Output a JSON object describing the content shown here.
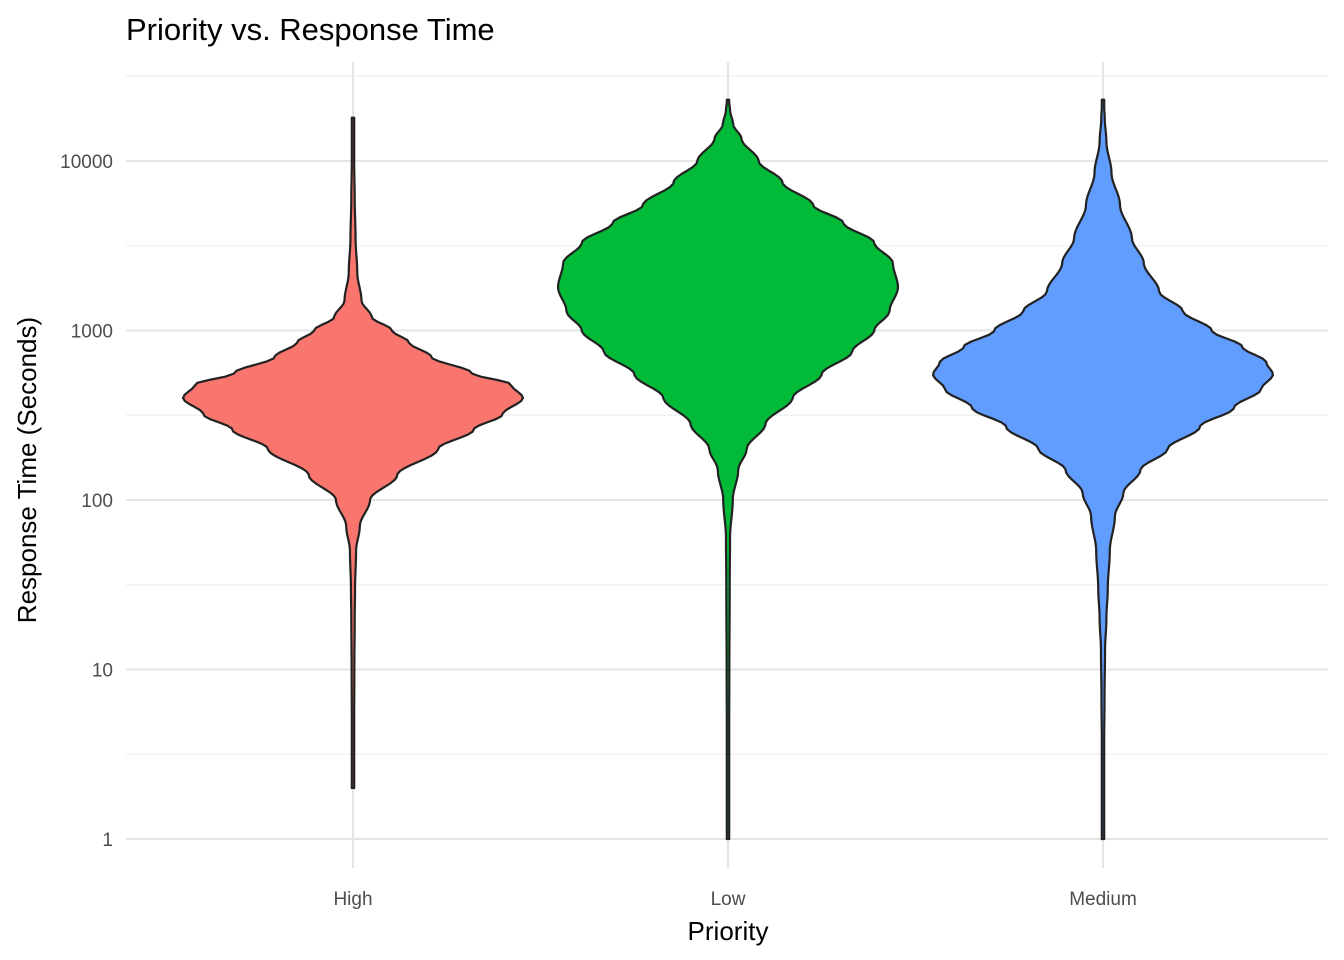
{
  "chart_data": {
    "type": "violin",
    "title": "Priority vs. Response Time",
    "xlabel": "Priority",
    "ylabel": "Response Time (Seconds)",
    "y_scale": "log10",
    "ylim": [
      1,
      30000
    ],
    "y_ticks": [
      1,
      10,
      100,
      1000,
      10000
    ],
    "y_tick_labels": [
      "1",
      "10",
      "100",
      "1000",
      "10000"
    ],
    "grid": true,
    "legend": "none",
    "categories": [
      "High",
      "Low",
      "Medium"
    ],
    "series": [
      {
        "category": "High",
        "color": "#F8766D",
        "min": 2,
        "max": 18000,
        "mode": 400,
        "density_profile": [
          [
            2,
            0.005
          ],
          [
            5,
            0.007
          ],
          [
            10,
            0.008
          ],
          [
            20,
            0.01
          ],
          [
            30,
            0.012
          ],
          [
            50,
            0.018
          ],
          [
            70,
            0.04
          ],
          [
            100,
            0.1
          ],
          [
            140,
            0.26
          ],
          [
            200,
            0.5
          ],
          [
            260,
            0.71
          ],
          [
            320,
            0.88
          ],
          [
            400,
            1.0
          ],
          [
            480,
            0.93
          ],
          [
            560,
            0.7
          ],
          [
            700,
            0.46
          ],
          [
            850,
            0.33
          ],
          [
            1000,
            0.23
          ],
          [
            1200,
            0.11
          ],
          [
            1500,
            0.05
          ],
          [
            2200,
            0.025
          ],
          [
            3500,
            0.015
          ],
          [
            6000,
            0.01
          ],
          [
            10000,
            0.007
          ],
          [
            18000,
            0.005
          ]
        ]
      },
      {
        "category": "Low",
        "color": "#00BA38",
        "min": 1,
        "max": 23000,
        "mode": 2000,
        "density_profile": [
          [
            1,
            0.004
          ],
          [
            3,
            0.006
          ],
          [
            10,
            0.008
          ],
          [
            30,
            0.01
          ],
          [
            60,
            0.012
          ],
          [
            100,
            0.028
          ],
          [
            150,
            0.06
          ],
          [
            200,
            0.11
          ],
          [
            280,
            0.22
          ],
          [
            400,
            0.38
          ],
          [
            550,
            0.55
          ],
          [
            750,
            0.73
          ],
          [
            1000,
            0.86
          ],
          [
            1300,
            0.95
          ],
          [
            1800,
            1.0
          ],
          [
            2500,
            0.97
          ],
          [
            3300,
            0.86
          ],
          [
            4300,
            0.68
          ],
          [
            5500,
            0.5
          ],
          [
            7500,
            0.32
          ],
          [
            10000,
            0.18
          ],
          [
            13500,
            0.08
          ],
          [
            16500,
            0.03
          ],
          [
            20000,
            0.012
          ],
          [
            23000,
            0.005
          ]
        ]
      },
      {
        "category": "Medium",
        "color": "#619CFF",
        "min": 1,
        "max": 23000,
        "mode": 550,
        "density_profile": [
          [
            1,
            0.004
          ],
          [
            3,
            0.006
          ],
          [
            7,
            0.009
          ],
          [
            13,
            0.012
          ],
          [
            20,
            0.02
          ],
          [
            30,
            0.028
          ],
          [
            50,
            0.04
          ],
          [
            80,
            0.07
          ],
          [
            110,
            0.12
          ],
          [
            150,
            0.22
          ],
          [
            200,
            0.38
          ],
          [
            270,
            0.57
          ],
          [
            350,
            0.77
          ],
          [
            450,
            0.93
          ],
          [
            550,
            1.0
          ],
          [
            650,
            0.96
          ],
          [
            800,
            0.82
          ],
          [
            1000,
            0.64
          ],
          [
            1300,
            0.47
          ],
          [
            1700,
            0.33
          ],
          [
            2500,
            0.24
          ],
          [
            3500,
            0.17
          ],
          [
            5500,
            0.1
          ],
          [
            8500,
            0.05
          ],
          [
            13000,
            0.02
          ],
          [
            18000,
            0.01
          ],
          [
            23000,
            0.004
          ]
        ]
      }
    ]
  }
}
